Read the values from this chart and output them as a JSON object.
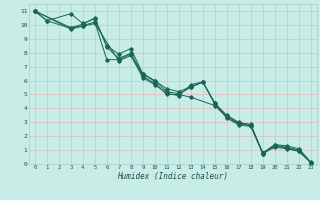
{
  "xlabel": "Humidex (Indice chaleur)",
  "bg_color": "#c8ece6",
  "grid_color_major": "#e8b8b8",
  "grid_color_minor": "#e8b8b8",
  "line_color": "#1a6655",
  "xlim": [
    -0.5,
    23.5
  ],
  "ylim": [
    0,
    11.5
  ],
  "xtick_max": 23,
  "ytick_max": 11,
  "series": [
    {
      "x": [
        0,
        1,
        3,
        4,
        5,
        6,
        7,
        8,
        9,
        10,
        11,
        12,
        13,
        14,
        15,
        16,
        17,
        18,
        19,
        20,
        21,
        22,
        23
      ],
      "y": [
        11,
        10.3,
        10.8,
        10.1,
        10.45,
        8.5,
        7.9,
        8.3,
        6.5,
        6.0,
        5.4,
        5.2,
        5.55,
        5.9,
        4.3,
        3.5,
        3.0,
        2.8,
        0.8,
        1.4,
        1.3,
        1.1,
        0.15
      ]
    },
    {
      "x": [
        0,
        3,
        4,
        5,
        6,
        7,
        8,
        9,
        10,
        11,
        12,
        13,
        14,
        15,
        16,
        17,
        18,
        19,
        20,
        21,
        22,
        23
      ],
      "y": [
        11,
        9.8,
        10.05,
        10.5,
        8.4,
        7.6,
        7.95,
        6.45,
        5.95,
        5.2,
        5.05,
        5.5,
        5.9,
        4.4,
        3.45,
        2.95,
        2.85,
        0.75,
        1.35,
        1.2,
        1.0,
        0.1
      ]
    },
    {
      "x": [
        0,
        1,
        3,
        4,
        5,
        6,
        7,
        8,
        9,
        10,
        11,
        12,
        13,
        15,
        16,
        17,
        18,
        19,
        20,
        21,
        22,
        23
      ],
      "y": [
        11,
        10.3,
        9.75,
        9.95,
        10.2,
        7.5,
        7.5,
        7.9,
        6.3,
        5.8,
        5.0,
        5.0,
        4.8,
        4.2,
        3.35,
        2.9,
        2.75,
        0.7,
        1.3,
        1.15,
        0.95,
        0.1
      ]
    },
    {
      "x": [
        0,
        3,
        4,
        5,
        7,
        8,
        9,
        10,
        11,
        12,
        13,
        14,
        15,
        16,
        17,
        18,
        19,
        20,
        21,
        22,
        23
      ],
      "y": [
        11,
        9.7,
        9.9,
        10.1,
        7.4,
        7.8,
        6.2,
        5.7,
        5.1,
        4.9,
        5.7,
        5.9,
        4.35,
        3.3,
        2.8,
        2.7,
        0.8,
        1.2,
        1.1,
        0.9,
        0.1
      ]
    }
  ]
}
